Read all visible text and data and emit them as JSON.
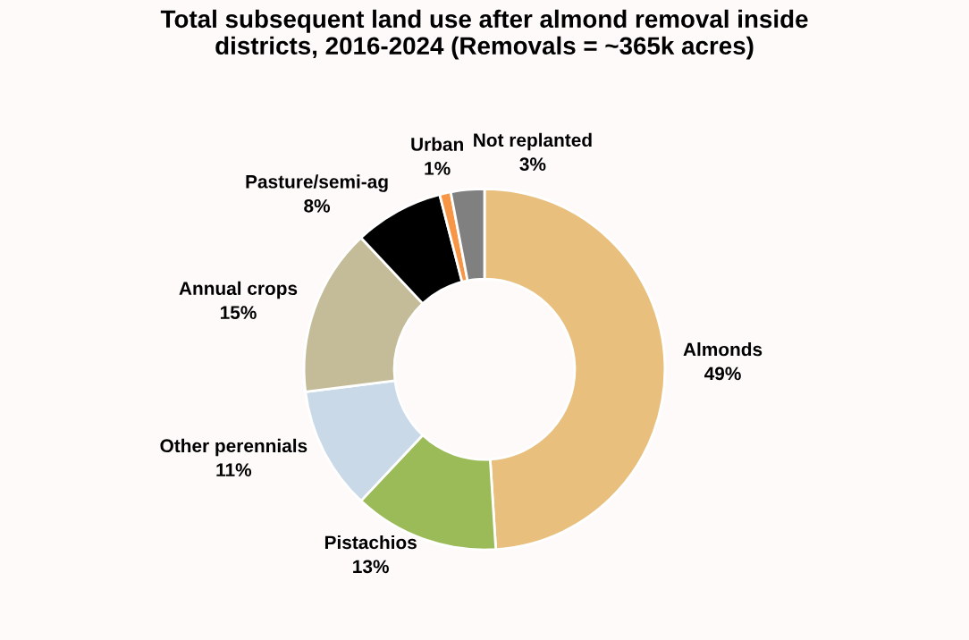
{
  "chart_data": {
    "type": "donut",
    "title": "Total subsequent land use after almond removal inside\ndistricts, 2016-2024 (Removals = ~365k acres)",
    "categories": [
      "Almonds",
      "Pistachios",
      "Other perennials",
      "Annual crops",
      "Pasture/semi-ag",
      "Urban",
      "Not replanted"
    ],
    "values": [
      49,
      13,
      11,
      15,
      8,
      1,
      3
    ],
    "value_labels": [
      "49%",
      "13%",
      "11%",
      "15%",
      "8%",
      "1%",
      "3%"
    ],
    "colors": [
      "#e9bf7e",
      "#9bbb59",
      "#c9d9e8",
      "#c4bc98",
      "#000000",
      "#f79646",
      "#808080"
    ],
    "legend": false
  }
}
